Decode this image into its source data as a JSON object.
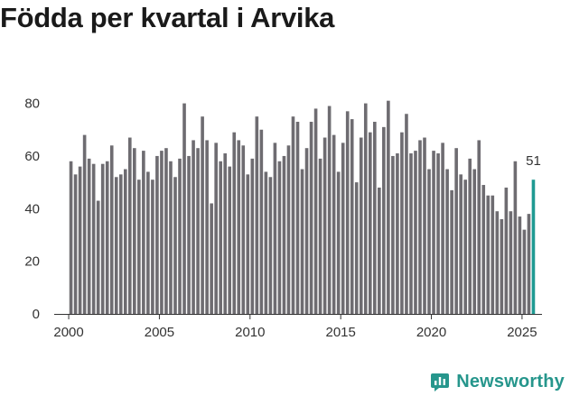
{
  "header": {
    "title": "Födda per kvartal i Arvika"
  },
  "brand": {
    "name": "Newsworthy",
    "color": "#26968c"
  },
  "colors": {
    "bar": "#6e6c71",
    "highlight": "#1f9a92",
    "axis": "#333333",
    "grid": "#e5e5e5"
  },
  "chart_data": {
    "type": "bar",
    "title": "Födda per kvartal i Arvika",
    "xlabel": "",
    "ylabel": "",
    "ylim": [
      0,
      85
    ],
    "xlim": [
      1999.2,
      2026.1
    ],
    "yticks": [
      0,
      20,
      40,
      60,
      80
    ],
    "xticks": [
      2000,
      2005,
      2010,
      2015,
      2020,
      2025
    ],
    "start_year": 2000,
    "values": [
      58,
      53,
      56,
      68,
      59,
      57,
      43,
      57,
      58,
      64,
      52,
      53,
      55,
      67,
      63,
      51,
      62,
      54,
      51,
      60,
      62,
      63,
      58,
      52,
      59,
      80,
      60,
      66,
      63,
      75,
      66,
      42,
      65,
      58,
      61,
      56,
      69,
      66,
      64,
      53,
      59,
      75,
      70,
      54,
      52,
      65,
      58,
      60,
      64,
      75,
      73,
      55,
      63,
      73,
      78,
      59,
      67,
      79,
      68,
      54,
      65,
      77,
      74,
      50,
      67,
      80,
      69,
      73,
      48,
      71,
      81,
      60,
      61,
      69,
      76,
      61,
      62,
      66,
      67,
      55,
      62,
      61,
      65,
      55,
      47,
      63,
      53,
      51,
      59,
      55,
      66,
      49,
      45,
      45,
      39,
      36,
      48,
      39,
      58,
      37,
      32,
      38,
      51
    ],
    "highlight": {
      "index": 102,
      "value": 51,
      "label": "51"
    }
  }
}
